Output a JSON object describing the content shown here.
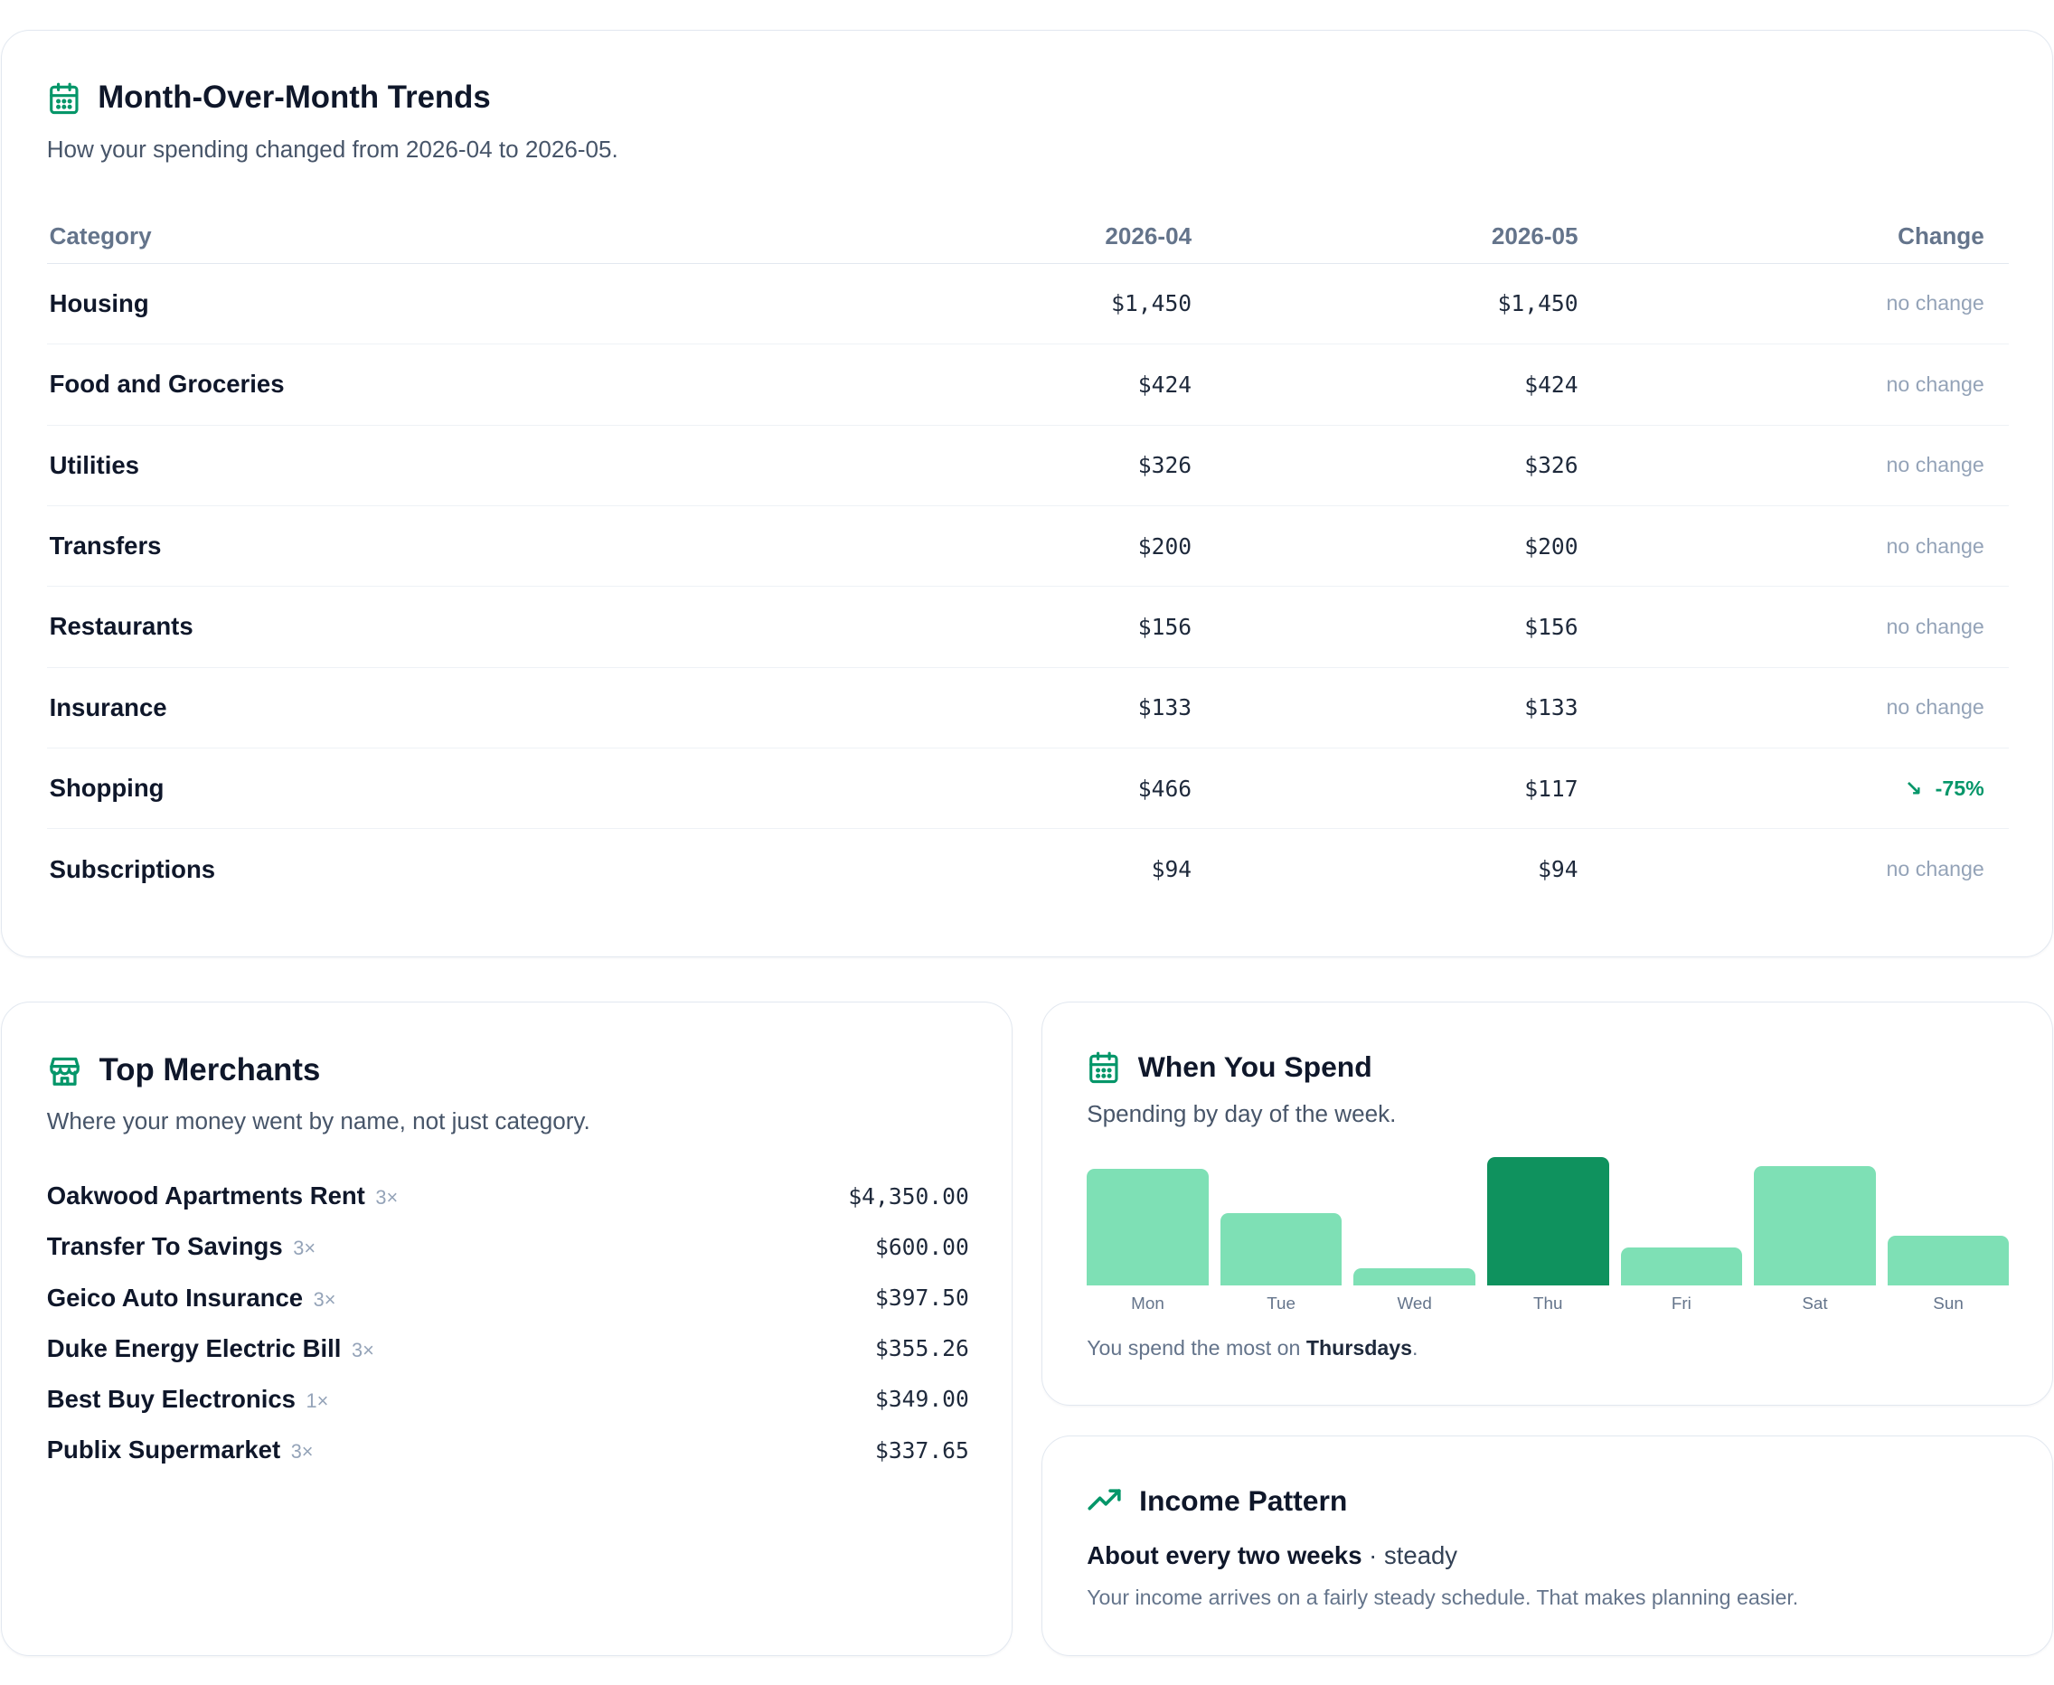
{
  "colors": {
    "accent": "#059669",
    "bar": "#7ee0b5",
    "bar_peak": "#0f925e"
  },
  "trends": {
    "icon": "calendar-icon",
    "title": "Month-Over-Month Trends",
    "subtitle": "How your spending changed from 2026-04 to 2026-05.",
    "headers": {
      "category": "Category",
      "m1": "2026-04",
      "m2": "2026-05",
      "change": "Change"
    },
    "rows": [
      {
        "category": "Housing",
        "m1": "$1,450",
        "m2": "$1,450",
        "change": "no change"
      },
      {
        "category": "Food and Groceries",
        "m1": "$424",
        "m2": "$424",
        "change": "no change"
      },
      {
        "category": "Utilities",
        "m1": "$326",
        "m2": "$326",
        "change": "no change"
      },
      {
        "category": "Transfers",
        "m1": "$200",
        "m2": "$200",
        "change": "no change"
      },
      {
        "category": "Restaurants",
        "m1": "$156",
        "m2": "$156",
        "change": "no change"
      },
      {
        "category": "Insurance",
        "m1": "$133",
        "m2": "$133",
        "change": "no change"
      },
      {
        "category": "Shopping",
        "m1": "$466",
        "m2": "$117",
        "change": "-75%",
        "direction": "down"
      },
      {
        "category": "Subscriptions",
        "m1": "$94",
        "m2": "$94",
        "change": "no change"
      }
    ]
  },
  "merchants": {
    "icon": "storefront-icon",
    "title": "Top Merchants",
    "subtitle": "Where your money went by name, not just category.",
    "items": [
      {
        "name": "Oakwood Apartments Rent",
        "count": "3×",
        "amount": "$4,350.00"
      },
      {
        "name": "Transfer To Savings",
        "count": "3×",
        "amount": "$600.00"
      },
      {
        "name": "Geico Auto Insurance",
        "count": "3×",
        "amount": "$397.50"
      },
      {
        "name": "Duke Energy Electric Bill",
        "count": "3×",
        "amount": "$355.26"
      },
      {
        "name": "Best Buy Electronics",
        "count": "1×",
        "amount": "$349.00"
      },
      {
        "name": "Publix Supermarket",
        "count": "3×",
        "amount": "$337.65"
      }
    ]
  },
  "when_spend": {
    "icon": "calendar-icon",
    "title": "When You Spend",
    "subtitle": "Spending by day of the week.",
    "note_prefix": "You spend the most on ",
    "note_day": "Thursdays",
    "note_suffix": ".",
    "chart_data": {
      "type": "bar",
      "categories": [
        "Mon",
        "Tue",
        "Wed",
        "Thu",
        "Fri",
        "Sat",
        "Sun"
      ],
      "values": [
        0.91,
        0.57,
        0.14,
        1.0,
        0.3,
        0.93,
        0.39
      ],
      "peak": "Thu"
    }
  },
  "income": {
    "icon": "trending-up-icon",
    "title": "Income Pattern",
    "frequency": "About every two weeks",
    "separator": " · ",
    "stability": "steady",
    "description": "Your income arrives on a fairly steady schedule. That makes planning easier."
  }
}
